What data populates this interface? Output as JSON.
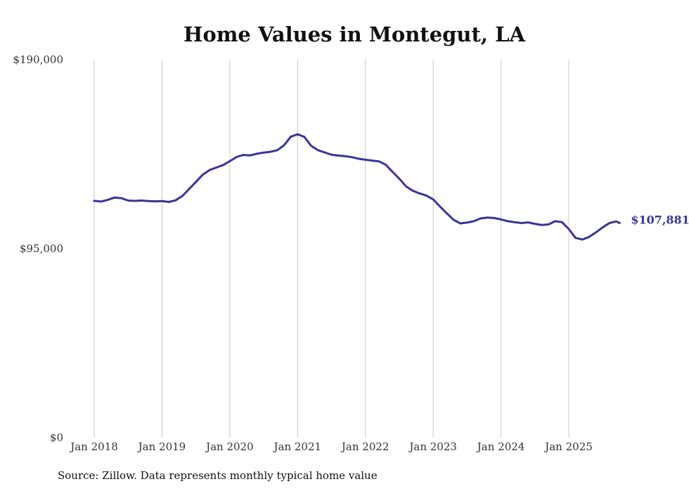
{
  "chart_data": {
    "type": "line",
    "title": "Home Values in Montegut, LA",
    "xlabel": "",
    "ylabel": "",
    "ylim": [
      0,
      190000
    ],
    "xlim": [
      2018.0,
      2025.75
    ],
    "grid": "vertical",
    "yticks": [
      {
        "value": 0,
        "label": "$0"
      },
      {
        "value": 95000,
        "label": "$95,000"
      },
      {
        "value": 190000,
        "label": "$190,000"
      }
    ],
    "xticks": [
      {
        "value": 2018,
        "label": "Jan 2018"
      },
      {
        "value": 2019,
        "label": "Jan 2019"
      },
      {
        "value": 2020,
        "label": "Jan 2020"
      },
      {
        "value": 2021,
        "label": "Jan 2021"
      },
      {
        "value": 2022,
        "label": "Jan 2022"
      },
      {
        "value": 2023,
        "label": "Jan 2023"
      },
      {
        "value": 2024,
        "label": "Jan 2024"
      },
      {
        "value": 2025,
        "label": "Jan 2025"
      }
    ],
    "series": [
      {
        "name": "Typical home value",
        "color": "#3b3494",
        "end_label": "$107,881",
        "points": [
          [
            2018.0,
            119000
          ],
          [
            2018.1,
            118700
          ],
          [
            2018.2,
            119500
          ],
          [
            2018.3,
            120700
          ],
          [
            2018.4,
            120400
          ],
          [
            2018.5,
            119200
          ],
          [
            2018.6,
            119000
          ],
          [
            2018.7,
            119200
          ],
          [
            2018.8,
            118900
          ],
          [
            2018.9,
            118800
          ],
          [
            2019.0,
            118900
          ],
          [
            2019.1,
            118500
          ],
          [
            2019.2,
            119300
          ],
          [
            2019.3,
            121500
          ],
          [
            2019.4,
            125000
          ],
          [
            2019.5,
            128500
          ],
          [
            2019.6,
            132200
          ],
          [
            2019.7,
            134500
          ],
          [
            2019.8,
            135800
          ],
          [
            2019.9,
            137000
          ],
          [
            2020.0,
            139000
          ],
          [
            2020.1,
            141100
          ],
          [
            2020.2,
            142100
          ],
          [
            2020.3,
            141900
          ],
          [
            2020.4,
            142700
          ],
          [
            2020.5,
            143300
          ],
          [
            2020.6,
            143700
          ],
          [
            2020.7,
            144500
          ],
          [
            2020.8,
            147000
          ],
          [
            2020.9,
            151300
          ],
          [
            2021.0,
            152500
          ],
          [
            2021.1,
            151200
          ],
          [
            2021.2,
            146700
          ],
          [
            2021.3,
            144500
          ],
          [
            2021.4,
            143400
          ],
          [
            2021.5,
            142200
          ],
          [
            2021.6,
            141800
          ],
          [
            2021.7,
            141500
          ],
          [
            2021.8,
            141000
          ],
          [
            2021.9,
            140200
          ],
          [
            2022.0,
            139700
          ],
          [
            2022.1,
            139300
          ],
          [
            2022.2,
            138900
          ],
          [
            2022.3,
            137200
          ],
          [
            2022.4,
            133600
          ],
          [
            2022.5,
            130200
          ],
          [
            2022.6,
            126300
          ],
          [
            2022.7,
            124100
          ],
          [
            2022.8,
            122800
          ],
          [
            2022.9,
            121700
          ],
          [
            2023.0,
            119800
          ],
          [
            2023.1,
            116200
          ],
          [
            2023.2,
            112800
          ],
          [
            2023.3,
            109500
          ],
          [
            2023.4,
            107700
          ],
          [
            2023.5,
            108100
          ],
          [
            2023.6,
            108800
          ],
          [
            2023.7,
            110200
          ],
          [
            2023.8,
            110600
          ],
          [
            2023.9,
            110400
          ],
          [
            2024.0,
            109700
          ],
          [
            2024.1,
            108800
          ],
          [
            2024.2,
            108300
          ],
          [
            2024.3,
            107900
          ],
          [
            2024.4,
            108200
          ],
          [
            2024.5,
            107500
          ],
          [
            2024.6,
            106900
          ],
          [
            2024.7,
            107200
          ],
          [
            2024.8,
            108800
          ],
          [
            2024.9,
            108300
          ],
          [
            2025.0,
            104900
          ],
          [
            2025.1,
            100400
          ],
          [
            2025.2,
            99600
          ],
          [
            2025.3,
            100900
          ],
          [
            2025.4,
            103200
          ],
          [
            2025.5,
            105700
          ],
          [
            2025.6,
            107900
          ],
          [
            2025.7,
            108700
          ],
          [
            2025.75,
            107881
          ]
        ]
      }
    ]
  },
  "source": "Source: Zillow. Data represents monthly typical home value"
}
